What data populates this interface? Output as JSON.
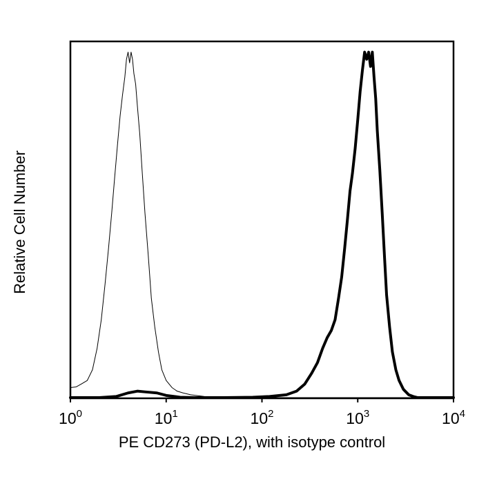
{
  "chart_data": {
    "type": "line",
    "title": "",
    "xlabel": "PE CD273 (PD-L2), with isotype control",
    "ylabel": "Relative Cell Number",
    "x_scale": "log",
    "xlim": [
      1,
      10000
    ],
    "ylim": [
      0,
      100
    ],
    "grid": false,
    "legend": "none",
    "x_ticks": [
      {
        "value": 1,
        "base": "10",
        "exp": "0"
      },
      {
        "value": 10,
        "base": "10",
        "exp": "1"
      },
      {
        "value": 100,
        "base": "10",
        "exp": "2"
      },
      {
        "value": 1000,
        "base": "10",
        "exp": "3"
      },
      {
        "value": 10000,
        "base": "10",
        "exp": "4"
      }
    ],
    "series": [
      {
        "style": "thin",
        "color": "#000000",
        "x": [
          1.0,
          1.15,
          1.3,
          1.5,
          1.7,
          1.9,
          2.1,
          2.3,
          2.5,
          2.7,
          2.9,
          3.1,
          3.3,
          3.5,
          3.7,
          3.85,
          4.0,
          4.15,
          4.3,
          4.45,
          4.6,
          4.8,
          5.0,
          5.3,
          5.6,
          6.0,
          6.5,
          7.0,
          7.6,
          8.3,
          9.0,
          10.0,
          11.5,
          13.0,
          15.0,
          18.0,
          25.0,
          40.0,
          60.0,
          100.0,
          200.0,
          500.0,
          1000.0,
          3000.0,
          10000.0
        ],
        "y": [
          3,
          3.2,
          4,
          5,
          8,
          14,
          22,
          32,
          42,
          52,
          62,
          71,
          79,
          85,
          90,
          95,
          97,
          94,
          97,
          95,
          91,
          88,
          82,
          74,
          64,
          52,
          40,
          28,
          20,
          13,
          8,
          5,
          3,
          2,
          1.5,
          1,
          0.5,
          0.3,
          0.2,
          0.2,
          0.2,
          0.2,
          0.2,
          0.2,
          0.2
        ]
      },
      {
        "style": "thick",
        "color": "#000000",
        "x": [
          1.0,
          2.0,
          3.0,
          4.0,
          5.0,
          6.0,
          8.0,
          10.0,
          14.0,
          20.0,
          40.0,
          80.0,
          120.0,
          180.0,
          230.0,
          280.0,
          330.0,
          380.0,
          430.0,
          480.0,
          530.0,
          580.0,
          630.0,
          680.0,
          730.0,
          780.0,
          830.0,
          880.0,
          940.0,
          1000.0,
          1060.0,
          1120.0,
          1180.0,
          1240.0,
          1300.0,
          1360.0,
          1420.0,
          1480.0,
          1540.0,
          1600.0,
          1700.0,
          1800.0,
          1900.0,
          2000.0,
          2150.0,
          2300.0,
          2500.0,
          2700.0,
          3000.0,
          3400.0,
          3800.0,
          4200.0,
          5000.0,
          10000.0
        ],
        "y": [
          0.2,
          0.2,
          0.5,
          1.5,
          2.0,
          1.8,
          1.5,
          0.8,
          0.3,
          0.2,
          0.2,
          0.3,
          0.5,
          1,
          2,
          4,
          7,
          10,
          14,
          17,
          19,
          22,
          28,
          34,
          42,
          50,
          58,
          63,
          70,
          78,
          86,
          92,
          97,
          95,
          97,
          93,
          97,
          90,
          84,
          75,
          64,
          52,
          40,
          29,
          20,
          13,
          8,
          5,
          2.5,
          1,
          0.5,
          0.2,
          0.2,
          0.2
        ]
      }
    ]
  }
}
